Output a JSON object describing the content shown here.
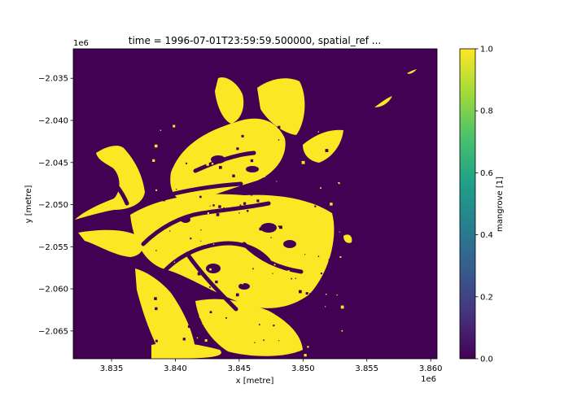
{
  "chart_data": {
    "type": "heatmap",
    "title": "time = 1996-07-01T23:59:59.500000, spatial_ref ...",
    "xlabel": "x [metre]",
    "ylabel": "y [metre]",
    "x_offset_label": "1e6",
    "y_offset_label": "1e6",
    "xlim": [
      3.832,
      3.8605
    ],
    "ylim": [
      -2.0683,
      -2.0315
    ],
    "x_ticks": [
      3.835,
      3.84,
      3.845,
      3.85,
      3.855,
      3.86
    ],
    "x_tick_labels": [
      "3.835",
      "3.840",
      "3.845",
      "3.850",
      "3.855",
      "3.860"
    ],
    "y_ticks": [
      -2.035,
      -2.04,
      -2.045,
      -2.05,
      -2.055,
      -2.06,
      -2.065
    ],
    "y_tick_labels": [
      "−2.035",
      "−2.040",
      "−2.045",
      "−2.050",
      "−2.055",
      "−2.060",
      "−2.065"
    ],
    "value_range": [
      0.0,
      1.0
    ],
    "colorbar": {
      "label": "mangrove [1]",
      "ticks": [
        0.0,
        0.2,
        0.4,
        0.6,
        0.8,
        1.0
      ],
      "tick_labels": [
        "0.0",
        "0.2",
        "0.4",
        "0.6",
        "0.8",
        "1.0"
      ]
    },
    "colormap": [
      "#440154",
      "#46327e",
      "#365c8d",
      "#277f8e",
      "#1fa187",
      "#4ac16d",
      "#a0da39",
      "#fde725"
    ],
    "background_value": 0,
    "mangrove_value": 1,
    "grid": false
  }
}
